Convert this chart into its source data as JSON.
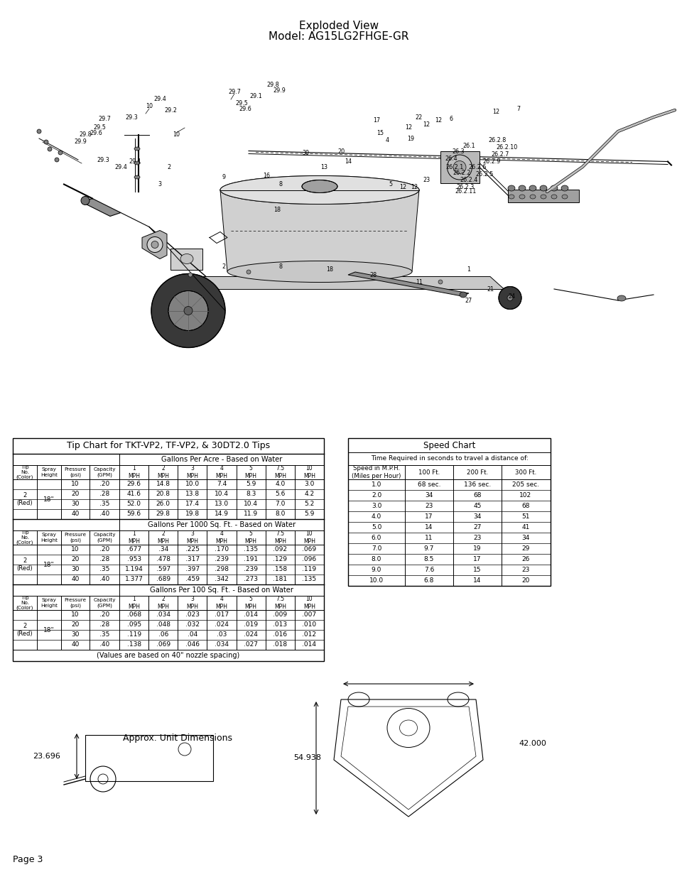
{
  "title_line1": "Exploded View",
  "title_line2": "Model: AG15LG2FHGE-GR",
  "page_text": "Page 3",
  "tip_chart_title": "Tip Chart for TKT-VP2, TF-VP2, & 30DT2.0 Tips",
  "tip_chart_section1_header": "Gallons Per Acre - Based on Water",
  "tip_chart_section2_header": "Gallons Per 1000 Sq. Ft. - Based on Water",
  "tip_chart_section3_header": "Gallons Per 100 Sq. Ft. - Based on Water",
  "tip_chart_footer": "(Values are based on 40\" nozzle spacing)",
  "speed_chart_title": "Speed Chart",
  "speed_chart_subtitle": "Time Required in seconds to travel a distance of:",
  "speed_chart_col_headers": [
    "Speed in M.P.H.\n(Miles per Hour)",
    "100 Ft.",
    "200 Ft.",
    "300 Ft."
  ],
  "speed_chart_rows": [
    [
      "1.0",
      "68 sec.",
      "136 sec.",
      "205 sec."
    ],
    [
      "2.0",
      "34",
      "68",
      "102"
    ],
    [
      "3.0",
      "23",
      "45",
      "68"
    ],
    [
      "4.0",
      "17",
      "34",
      "51"
    ],
    [
      "5.0",
      "14",
      "27",
      "41"
    ],
    [
      "6.0",
      "11",
      "23",
      "34"
    ],
    [
      "7.0",
      "9.7",
      "19",
      "29"
    ],
    [
      "8.0",
      "8.5",
      "17",
      "26"
    ],
    [
      "9.0",
      "7.6",
      "15",
      "23"
    ],
    [
      "10.0",
      "6.8",
      "14",
      "20"
    ]
  ],
  "approx_dim_label": "Approx. Unit Dimensions",
  "dim_width": "42.000",
  "dim_height_label": "54.938",
  "dim_side_label": "23.696",
  "s1_psi": [
    "10",
    "20",
    "30",
    "40"
  ],
  "s1_cap": [
    ".20",
    ".28",
    ".35",
    ".40"
  ],
  "s1_vals": [
    [
      "29.6",
      "14.8",
      "10.0",
      "7.4",
      "5.9",
      "4.0",
      "3.0"
    ],
    [
      "41.6",
      "20.8",
      "13.8",
      "10.4",
      "8.3",
      "5.6",
      "4.2"
    ],
    [
      "52.0",
      "26.0",
      "17.4",
      "13.0",
      "10.4",
      "7.0",
      "5.2"
    ],
    [
      "59.6",
      "29.8",
      "19.8",
      "14.9",
      "11.9",
      "8.0",
      "5.9"
    ]
  ],
  "s2_vals": [
    [
      ".677",
      ".34",
      ".225",
      ".170",
      ".135",
      ".092",
      ".069"
    ],
    [
      ".953",
      ".478",
      ".317",
      ".239",
      ".191",
      ".129",
      ".096"
    ],
    [
      "1.194",
      ".597",
      ".397",
      ".298",
      ".239",
      ".158",
      ".119"
    ],
    [
      "1.377",
      ".689",
      ".459",
      ".342",
      ".273",
      ".181",
      ".135"
    ]
  ],
  "s3_vals": [
    [
      ".068",
      ".034",
      ".023",
      ".017",
      ".014",
      ".009",
      ".007"
    ],
    [
      ".095",
      ".048",
      ".032",
      ".024",
      ".019",
      ".013",
      ".010"
    ],
    [
      ".119",
      ".06",
      ".04",
      ".03",
      ".024",
      ".016",
      ".012"
    ],
    [
      ".138",
      ".069",
      ".046",
      ".034",
      ".027",
      ".018",
      ".014"
    ]
  ],
  "mph_labels": [
    "1\nMPH",
    "2\nMPH",
    "3\nMPH",
    "4\nMPH",
    "5\nMPH",
    "7.5\nMPH",
    "10\nMPH"
  ],
  "left_headers": [
    "Tip\nNo.\n(Color)",
    "Spray\nHeight",
    "Pressure\n(psi)",
    "Capacity\n(GPM)"
  ],
  "background_color": "#ffffff"
}
